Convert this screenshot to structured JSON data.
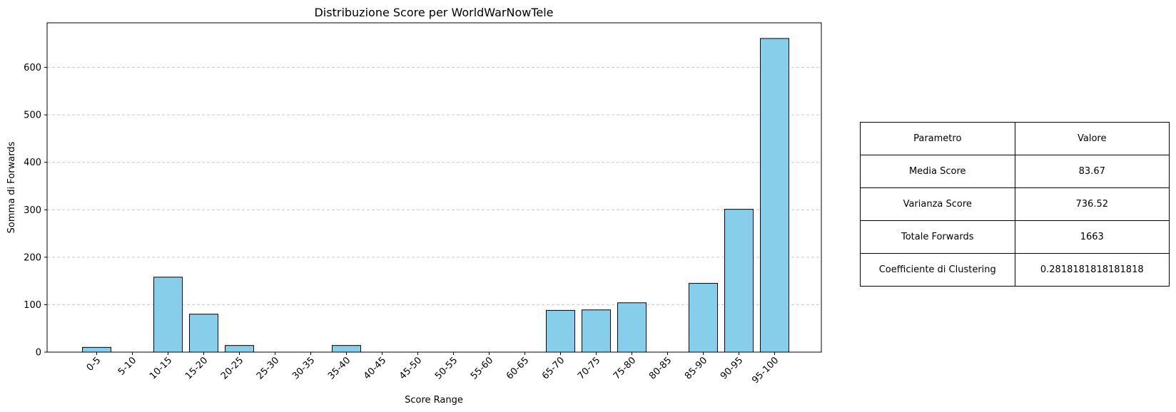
{
  "chart_data": {
    "type": "bar",
    "title": "Distribuzione Score per WorldWarNowTele",
    "xlabel": "Score Range",
    "ylabel": "Somma di Forwards",
    "categories": [
      "0-5",
      "5-10",
      "10-15",
      "15-20",
      "20-25",
      "25-30",
      "30-35",
      "35-40",
      "40-45",
      "45-50",
      "50-55",
      "55-60",
      "60-65",
      "65-70",
      "70-75",
      "75-80",
      "80-85",
      "85-90",
      "90-95",
      "95-100"
    ],
    "values": [
      10,
      0,
      158,
      80,
      14,
      0,
      0,
      14,
      0,
      0,
      0,
      0,
      0,
      88,
      89,
      104,
      0,
      145,
      301,
      661
    ],
    "ylim": [
      0,
      694
    ],
    "yticks": [
      0,
      100,
      200,
      300,
      400,
      500,
      600
    ],
    "grid": "y-dashed",
    "bar_color": "#87CEEB",
    "edge_color": "#000000"
  },
  "table": {
    "header": [
      "Parametro",
      "Valore"
    ],
    "rows": [
      [
        "Media Score",
        "83.67"
      ],
      [
        "Varianza Score",
        "736.52"
      ],
      [
        "Totale Forwards",
        "1663"
      ],
      [
        "Coefficiente di Clustering",
        "0.2818181818181818"
      ]
    ]
  }
}
